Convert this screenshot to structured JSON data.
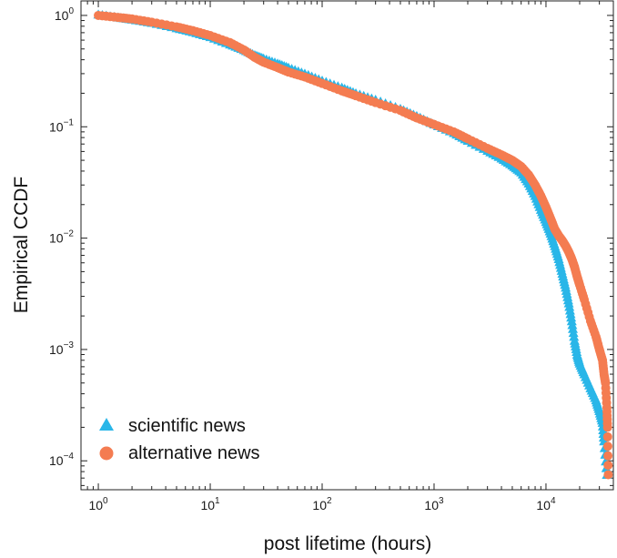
{
  "chart_data": {
    "type": "scatter",
    "xlabel": "post lifetime (hours)",
    "ylabel": "Empirical CCDF",
    "x_scale": "log",
    "y_scale": "log",
    "xlim": [
      0.7,
      40000
    ],
    "ylim": [
      5.5e-05,
      1.35
    ],
    "x_ticks": [
      {
        "value": 1,
        "base": "10",
        "exp": "0"
      },
      {
        "value": 10,
        "base": "10",
        "exp": "1"
      },
      {
        "value": 100,
        "base": "10",
        "exp": "2"
      },
      {
        "value": 1000,
        "base": "10",
        "exp": "3"
      },
      {
        "value": 10000,
        "base": "10",
        "exp": "4"
      }
    ],
    "y_ticks": [
      {
        "value": 1,
        "base": "10",
        "exp": "0"
      },
      {
        "value": 0.1,
        "base": "10",
        "exp": "−1"
      },
      {
        "value": 0.01,
        "base": "10",
        "exp": "−2"
      },
      {
        "value": 0.001,
        "base": "10",
        "exp": "−3"
      },
      {
        "value": 0.0001,
        "base": "10",
        "exp": "−4"
      }
    ],
    "grid": false,
    "legend_position": "bottom-left",
    "series": [
      {
        "name": "scientific news",
        "marker": "triangle",
        "color": "#29b6e8",
        "points": [
          [
            1,
            1.02
          ],
          [
            1.5,
            0.96
          ],
          [
            2,
            0.92
          ],
          [
            3,
            0.86
          ],
          [
            5,
            0.77
          ],
          [
            7,
            0.71
          ],
          [
            10,
            0.64
          ],
          [
            15,
            0.55
          ],
          [
            20,
            0.49
          ],
          [
            25,
            0.44
          ],
          [
            30,
            0.41
          ],
          [
            40,
            0.37
          ],
          [
            50,
            0.34
          ],
          [
            70,
            0.3
          ],
          [
            100,
            0.26
          ],
          [
            150,
            0.225
          ],
          [
            200,
            0.2
          ],
          [
            300,
            0.175
          ],
          [
            500,
            0.145
          ],
          [
            700,
            0.125
          ],
          [
            1000,
            0.105
          ],
          [
            1500,
            0.088
          ],
          [
            2000,
            0.075
          ],
          [
            3000,
            0.061
          ],
          [
            4000,
            0.052
          ],
          [
            5000,
            0.045
          ],
          [
            6000,
            0.039
          ],
          [
            7000,
            0.031
          ],
          [
            8000,
            0.024
          ],
          [
            9000,
            0.018
          ],
          [
            10000,
            0.014
          ],
          [
            11000,
            0.011
          ],
          [
            12000,
            0.0085
          ],
          [
            13000,
            0.0065
          ],
          [
            14000,
            0.0048
          ],
          [
            15000,
            0.0036
          ],
          [
            16000,
            0.0026
          ],
          [
            17000,
            0.0018
          ],
          [
            18000,
            0.0012
          ],
          [
            19000,
            0.0009
          ],
          [
            20000,
            0.00075
          ],
          [
            22000,
            0.0006
          ],
          [
            25000,
            0.00045
          ],
          [
            28000,
            0.00035
          ],
          [
            30000,
            0.00028
          ],
          [
            32000,
            0.00022
          ],
          [
            33000,
            0.00015
          ],
          [
            35000,
            7.5e-05
          ]
        ]
      },
      {
        "name": "alternative news",
        "marker": "circle",
        "color": "#f47c51",
        "points": [
          [
            1,
            1.0
          ],
          [
            1.5,
            0.96
          ],
          [
            2,
            0.93
          ],
          [
            3,
            0.87
          ],
          [
            5,
            0.79
          ],
          [
            7,
            0.73
          ],
          [
            10,
            0.66
          ],
          [
            15,
            0.57
          ],
          [
            20,
            0.49
          ],
          [
            25,
            0.42
          ],
          [
            30,
            0.38
          ],
          [
            40,
            0.34
          ],
          [
            50,
            0.31
          ],
          [
            70,
            0.28
          ],
          [
            100,
            0.245
          ],
          [
            150,
            0.21
          ],
          [
            200,
            0.19
          ],
          [
            300,
            0.165
          ],
          [
            500,
            0.14
          ],
          [
            700,
            0.12
          ],
          [
            1000,
            0.105
          ],
          [
            1500,
            0.09
          ],
          [
            2000,
            0.078
          ],
          [
            3000,
            0.064
          ],
          [
            4000,
            0.056
          ],
          [
            5000,
            0.05
          ],
          [
            6000,
            0.044
          ],
          [
            7000,
            0.037
          ],
          [
            8000,
            0.03
          ],
          [
            9000,
            0.024
          ],
          [
            10000,
            0.019
          ],
          [
            11000,
            0.015
          ],
          [
            12000,
            0.012
          ],
          [
            13000,
            0.0105
          ],
          [
            14000,
            0.0095
          ],
          [
            15000,
            0.0085
          ],
          [
            16000,
            0.0075
          ],
          [
            17000,
            0.0065
          ],
          [
            18000,
            0.0055
          ],
          [
            19000,
            0.0045
          ],
          [
            20000,
            0.0038
          ],
          [
            22000,
            0.0028
          ],
          [
            25000,
            0.0018
          ],
          [
            28000,
            0.0013
          ],
          [
            30000,
            0.001
          ],
          [
            32000,
            0.0008
          ],
          [
            33000,
            0.0006
          ],
          [
            34000,
            0.0005
          ],
          [
            35000,
            0.0003
          ],
          [
            35500,
            0.0002
          ],
          [
            36000,
            7.5e-05
          ]
        ]
      }
    ]
  }
}
